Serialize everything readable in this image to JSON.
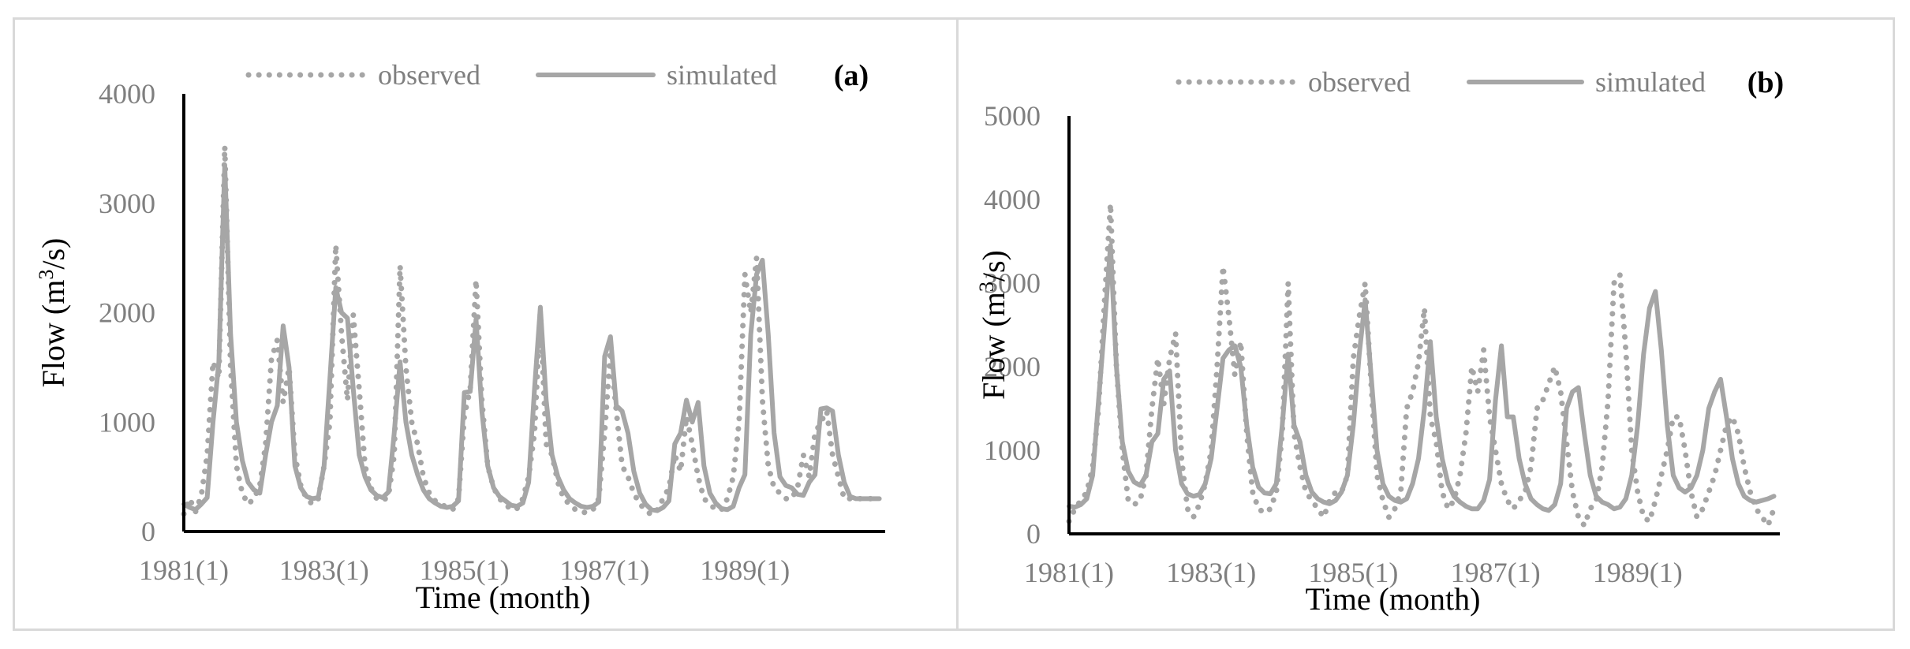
{
  "chart_data": [
    {
      "type": "line",
      "panel_label": "(a)",
      "xlabel": "Time (month)",
      "ylabel_base": "Flow (m",
      "ylabel_sup": "3",
      "ylabel_tail": "/s)",
      "ylim": [
        0,
        4000
      ],
      "yticks": [
        0,
        1000,
        2000,
        3000,
        4000
      ],
      "x_start": "1981(1)",
      "n_months": 120,
      "xticks": [
        {
          "label": "1981(1)",
          "month": 0
        },
        {
          "label": "1983(1)",
          "month": 24
        },
        {
          "label": "1985(1)",
          "month": 48
        },
        {
          "label": "1987(1)",
          "month": 72
        },
        {
          "label": "1989(1)",
          "month": 96
        }
      ],
      "legend": {
        "placement": "top-center",
        "entries": [
          "observed",
          "simulated"
        ]
      },
      "series": [
        {
          "name": "observed",
          "style": "dotted",
          "values": [
            160,
            300,
            180,
            330,
            700,
            1550,
            1400,
            3520,
            1500,
            600,
            350,
            250,
            300,
            420,
            800,
            1580,
            1750,
            1180,
            1500,
            700,
            420,
            300,
            250,
            300,
            600,
            1000,
            2620,
            1800,
            1200,
            1980,
            1300,
            600,
            400,
            300,
            280,
            320,
            700,
            2430,
            1500,
            1000,
            800,
            500,
            350,
            280,
            250,
            220,
            200,
            300,
            1060,
            1300,
            2300,
            1200,
            600,
            400,
            300,
            250,
            200,
            210,
            300,
            500,
            900,
            2000,
            800,
            700,
            450,
            300,
            250,
            200,
            180,
            170,
            200,
            300,
            900,
            1650,
            1100,
            600,
            500,
            350,
            250,
            200,
            150,
            200,
            300,
            400,
            700,
            550,
            1050,
            800,
            500,
            300,
            250,
            200,
            200,
            300,
            500,
            1000,
            2350,
            2000,
            2500,
            1200,
            600,
            400,
            350,
            300,
            300,
            400,
            700,
            500,
            900,
            1000,
            1100,
            700,
            500,
            300,
            300,
            300,
            300,
            300,
            300,
            300
          ]
        },
        {
          "name": "simulated",
          "style": "solid",
          "values": [
            250,
            220,
            200,
            250,
            310,
            1000,
            1550,
            3350,
            1800,
            1000,
            650,
            450,
            380,
            350,
            700,
            1000,
            1150,
            1880,
            1500,
            600,
            400,
            320,
            300,
            310,
            600,
            1400,
            2230,
            2000,
            1950,
            1300,
            700,
            500,
            380,
            330,
            310,
            360,
            900,
            1550,
            1000,
            700,
            520,
            380,
            300,
            260,
            230,
            220,
            230,
            280,
            1270,
            1280,
            1940,
            1100,
            600,
            400,
            320,
            280,
            240,
            230,
            260,
            450,
            1300,
            2050,
            1200,
            700,
            500,
            380,
            300,
            260,
            230,
            220,
            230,
            270,
            1600,
            1780,
            1150,
            1100,
            900,
            550,
            350,
            250,
            200,
            190,
            220,
            280,
            800,
            900,
            1200,
            1000,
            1180,
            600,
            350,
            260,
            210,
            200,
            230,
            400,
            520,
            1800,
            2350,
            2480,
            1800,
            900,
            500,
            420,
            400,
            340,
            330,
            450,
            520,
            1120,
            1130,
            1100,
            700,
            450,
            320,
            300,
            300,
            300,
            300,
            300
          ]
        }
      ]
    },
    {
      "type": "line",
      "panel_label": "(b)",
      "xlabel": "Time (month)",
      "ylabel_base": "Flow (m",
      "ylabel_sup": "3",
      "ylabel_tail": "/s)",
      "ylim": [
        0,
        5000
      ],
      "yticks": [
        0,
        1000,
        2000,
        3000,
        4000,
        5000
      ],
      "x_start": "1981(1)",
      "n_months": 120,
      "xticks": [
        {
          "label": "1981(1)",
          "month": 0
        },
        {
          "label": "1983(1)",
          "month": 24
        },
        {
          "label": "1985(1)",
          "month": 48
        },
        {
          "label": "1987(1)",
          "month": 72
        },
        {
          "label": "1989(1)",
          "month": 96
        }
      ],
      "legend": {
        "placement": "top-center",
        "entries": [
          "observed",
          "simulated"
        ]
      },
      "series": [
        {
          "name": "observed",
          "style": "dotted",
          "values": [
            150,
            300,
            400,
            500,
            800,
            1500,
            2800,
            3950,
            2000,
            1000,
            400,
            350,
            400,
            700,
            1500,
            2100,
            1550,
            2100,
            2400,
            900,
            300,
            200,
            350,
            600,
            1000,
            2000,
            3200,
            2600,
            1900,
            2300,
            1200,
            500,
            300,
            250,
            300,
            500,
            1200,
            3000,
            1200,
            800,
            500,
            400,
            300,
            200,
            400,
            500,
            500,
            700,
            2100,
            2600,
            3000,
            1800,
            700,
            400,
            200,
            300,
            500,
            1500,
            1700,
            2050,
            2700,
            1400,
            1100,
            500,
            300,
            400,
            700,
            1200,
            2000,
            1700,
            2200,
            1400,
            1000,
            600,
            400,
            300,
            400,
            500,
            800,
            1500,
            1600,
            1800,
            2000,
            1700,
            1100,
            500,
            200,
            100,
            300,
            400,
            800,
            1600,
            3000,
            3100,
            2200,
            1000,
            500,
            200,
            150,
            400,
            700,
            1000,
            1400,
            1400,
            1000,
            500,
            200,
            300,
            500,
            700,
            1000,
            1300,
            1400,
            1200,
            800,
            500,
            300,
            200,
            100,
            300
          ]
        },
        {
          "name": "simulated",
          "style": "solid",
          "values": [
            330,
            320,
            350,
            420,
            700,
            1600,
            2500,
            3450,
            2000,
            1100,
            750,
            620,
            580,
            700,
            1100,
            1200,
            1850,
            1950,
            1000,
            600,
            480,
            450,
            470,
            600,
            900,
            1500,
            2100,
            2200,
            2250,
            2000,
            1300,
            800,
            560,
            490,
            480,
            600,
            1300,
            2150,
            1300,
            1100,
            700,
            500,
            420,
            380,
            360,
            400,
            500,
            700,
            1300,
            2150,
            2800,
            1900,
            1000,
            600,
            450,
            400,
            380,
            420,
            600,
            900,
            1500,
            2300,
            1400,
            900,
            600,
            450,
            380,
            330,
            300,
            300,
            400,
            650,
            1600,
            2250,
            1400,
            1400,
            900,
            600,
            420,
            350,
            300,
            280,
            350,
            600,
            1500,
            1700,
            1750,
            1200,
            700,
            450,
            380,
            350,
            300,
            320,
            420,
            700,
            1300,
            2150,
            2700,
            2900,
            2200,
            1300,
            700,
            550,
            500,
            550,
            700,
            1000,
            1500,
            1700,
            1850,
            1400,
            900,
            600,
            450,
            400,
            380,
            400,
            420,
            450
          ]
        }
      ]
    }
  ]
}
